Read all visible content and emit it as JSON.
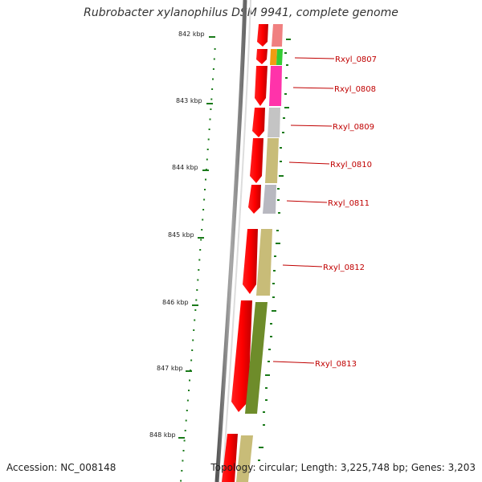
{
  "title": "Rubrobacter xylanophilus DSM 9941, complete genome",
  "footer": {
    "accession": "Accession: NC_008148",
    "stats": "Topology: circular; Length: 3,225,748 bp; Genes: 3,203"
  },
  "scale_ticks": [
    {
      "label": "842 kbp"
    },
    {
      "label": "843 kbp"
    },
    {
      "label": "844 kbp"
    },
    {
      "label": "845 kbp"
    },
    {
      "label": "846 kbp"
    },
    {
      "label": "847 kbp"
    },
    {
      "label": "848 kbp"
    }
  ],
  "genes": [
    {
      "label": "Rxyl_0807",
      "cog_color": "#f39c12"
    },
    {
      "label": "Rxyl_0808",
      "cog_color": "#ff33aa"
    },
    {
      "label": "Rxyl_0809",
      "cog_color": "#c4c4c4"
    },
    {
      "label": "Rxyl_0810",
      "cog_color": "#c8bc78"
    },
    {
      "label": "Rxyl_0811",
      "cog_color": "#b8b8c0"
    },
    {
      "label": "Rxyl_0812",
      "cog_color": "#c8bc78"
    },
    {
      "label": "Rxyl_0813",
      "cog_color": "#6e8c2a"
    }
  ],
  "colors": {
    "forward_strand": "#ff0000",
    "backbone": "#888888",
    "gc_skew": "#1a7a1a",
    "label": "#c00000"
  }
}
